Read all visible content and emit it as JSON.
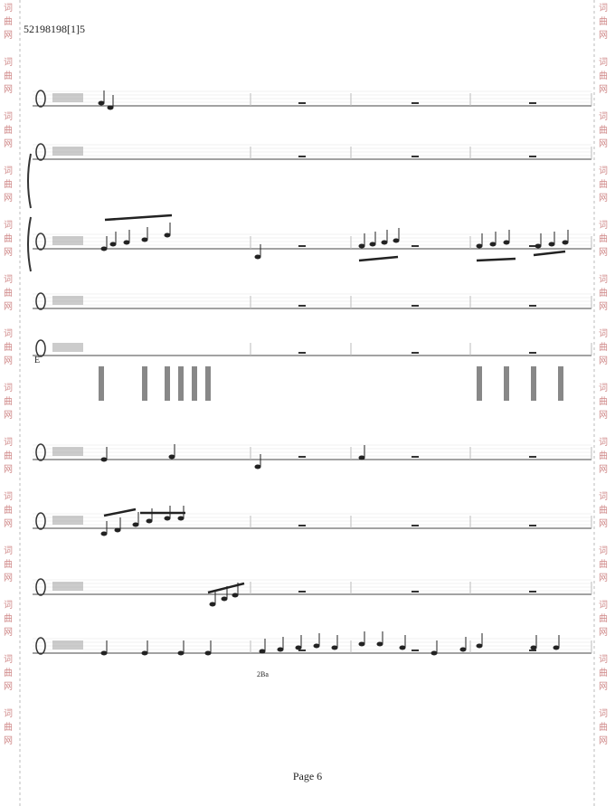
{
  "header": {
    "title": "52198198[1]5"
  },
  "watermark": [
    "词",
    "曲",
    "网"
  ],
  "annotations": {
    "pedal": "2Ba",
    "percussion": "E"
  },
  "footer": {
    "page": "Page 6"
  }
}
